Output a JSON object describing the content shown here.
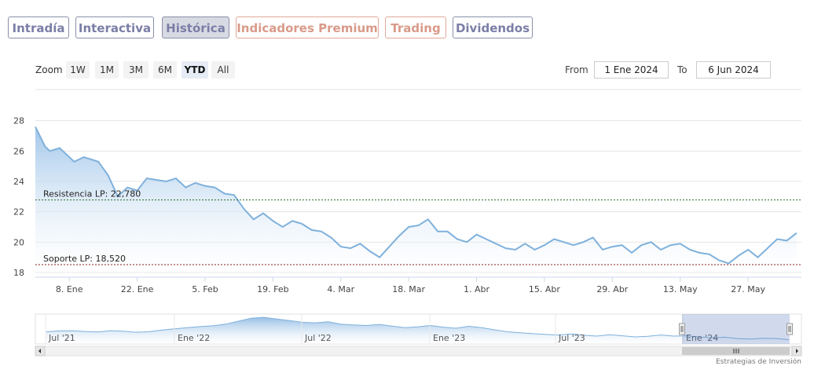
{
  "tabs": [
    {
      "label": "Intradía",
      "style": "purple"
    },
    {
      "label": "Interactiva",
      "style": "purple"
    },
    {
      "label": "Histórica",
      "style": "purple",
      "active": true
    },
    {
      "label": "Indicadores Premium",
      "style": "orange"
    },
    {
      "label": "Trading",
      "style": "orange"
    },
    {
      "label": "Dividendos",
      "style": "purple"
    }
  ],
  "zoom": {
    "label": "Zoom",
    "buttons": [
      "1W",
      "1M",
      "3M",
      "6M",
      "YTD",
      "All"
    ],
    "selected": "YTD"
  },
  "range": {
    "from_label": "From",
    "from_value": "1 Ene 2024",
    "to_label": "To",
    "to_value": "6 Jun 2024"
  },
  "chart_data": {
    "type": "area",
    "y_ticks": [
      "28",
      "26",
      "24",
      "22",
      "20",
      "18"
    ],
    "ylim": [
      18,
      28.5
    ],
    "x_ticks": [
      "8. Ene",
      "22. Ene",
      "5. Feb",
      "19. Feb",
      "4. Mar",
      "18. Mar",
      "1. Abr",
      "15. Abr",
      "29. Abr",
      "13. May",
      "27. May"
    ],
    "x_tick_days": [
      7,
      21,
      35,
      49,
      63,
      77,
      91,
      105,
      119,
      133,
      147
    ],
    "x_range_days": [
      0,
      158
    ],
    "series": [
      {
        "values": [
          [
            0,
            27.6
          ],
          [
            2,
            26.3
          ],
          [
            3,
            26.0
          ],
          [
            5,
            26.2
          ],
          [
            8,
            25.3
          ],
          [
            10,
            25.6
          ],
          [
            13,
            25.3
          ],
          [
            15,
            24.4
          ],
          [
            17,
            23.0
          ],
          [
            19,
            23.6
          ],
          [
            21,
            23.4
          ],
          [
            23,
            24.2
          ],
          [
            25,
            24.1
          ],
          [
            27,
            24.0
          ],
          [
            29,
            24.2
          ],
          [
            31,
            23.6
          ],
          [
            33,
            23.9
          ],
          [
            35,
            23.7
          ],
          [
            37,
            23.6
          ],
          [
            39,
            23.2
          ],
          [
            41,
            23.1
          ],
          [
            43,
            22.2
          ],
          [
            45,
            21.5
          ],
          [
            47,
            21.9
          ],
          [
            49,
            21.4
          ],
          [
            51,
            21.0
          ],
          [
            53,
            21.4
          ],
          [
            55,
            21.2
          ],
          [
            57,
            20.8
          ],
          [
            59,
            20.7
          ],
          [
            61,
            20.3
          ],
          [
            63,
            19.7
          ],
          [
            65,
            19.6
          ],
          [
            67,
            19.9
          ],
          [
            69,
            19.4
          ],
          [
            71,
            19.0
          ],
          [
            73,
            19.7
          ],
          [
            75,
            20.4
          ],
          [
            77,
            21.0
          ],
          [
            79,
            21.1
          ],
          [
            81,
            21.5
          ],
          [
            83,
            20.7
          ],
          [
            85,
            20.7
          ],
          [
            87,
            20.2
          ],
          [
            89,
            20.0
          ],
          [
            91,
            20.5
          ],
          [
            93,
            20.2
          ],
          [
            95,
            19.9
          ],
          [
            97,
            19.6
          ],
          [
            99,
            19.5
          ],
          [
            101,
            19.9
          ],
          [
            103,
            19.5
          ],
          [
            105,
            19.8
          ],
          [
            107,
            20.2
          ],
          [
            109,
            20.0
          ],
          [
            111,
            19.8
          ],
          [
            113,
            20.0
          ],
          [
            115,
            20.3
          ],
          [
            117,
            19.5
          ],
          [
            119,
            19.7
          ],
          [
            121,
            19.8
          ],
          [
            123,
            19.3
          ],
          [
            125,
            19.8
          ],
          [
            127,
            20.0
          ],
          [
            129,
            19.5
          ],
          [
            131,
            19.8
          ],
          [
            133,
            19.9
          ],
          [
            135,
            19.5
          ],
          [
            137,
            19.3
          ],
          [
            139,
            19.2
          ],
          [
            141,
            18.8
          ],
          [
            143,
            18.6
          ],
          [
            145,
            19.1
          ],
          [
            147,
            19.5
          ],
          [
            149,
            19.0
          ],
          [
            151,
            19.6
          ],
          [
            153,
            20.2
          ],
          [
            155,
            20.1
          ],
          [
            157,
            20.6
          ]
        ]
      }
    ],
    "annotations": [
      {
        "label": "Resistencia LP: 22,780",
        "value": 22.78,
        "color": "#2e6b2e"
      },
      {
        "label": "Soporte LP: 18,520",
        "value": 18.52,
        "color": "#8b1e1e"
      }
    ],
    "navigator_ticks": [
      "Jul '21",
      "Ene '22",
      "Jul '22",
      "Ene '23",
      "Jul '23",
      "Ene '24"
    ],
    "navigator_values": [
      22.5,
      22.8,
      22.9,
      22.6,
      22.4,
      22.9,
      22.7,
      22.3,
      22.5,
      23.1,
      23.6,
      24.0,
      24.4,
      24.7,
      25.3,
      26.4,
      27.5,
      27.8,
      27.2,
      26.6,
      26.0,
      25.8,
      26.2,
      25.3,
      25.0,
      24.8,
      25.2,
      24.6,
      24.0,
      24.3,
      24.8,
      24.2,
      23.8,
      24.5,
      24.0,
      23.2,
      22.5,
      22.1,
      21.8,
      21.5,
      21.3,
      21.7,
      21.2,
      20.9,
      21.4,
      21.0,
      20.6,
      20.8,
      21.3,
      20.9,
      21.0,
      20.6,
      20.3,
      20.5,
      20.0,
      19.8,
      20.1,
      20.0,
      19.6
    ]
  },
  "credits": "Estrategias de Inversión",
  "colors": {
    "line": "#7fb1dc",
    "fill_top": "#9cc3e8",
    "grid": "#e6e6e6",
    "axis_text": "#444"
  }
}
